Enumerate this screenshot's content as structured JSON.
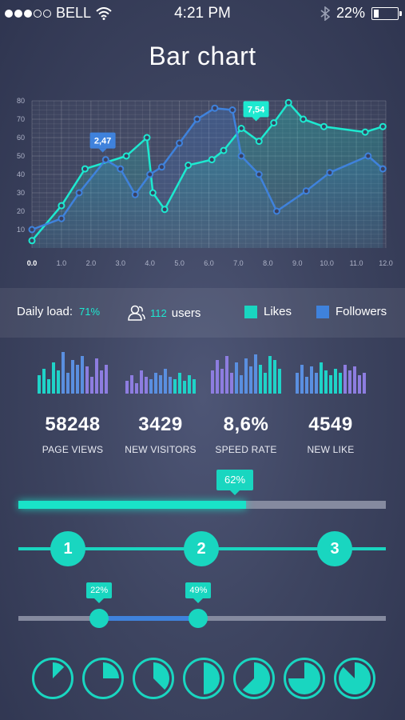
{
  "status_bar": {
    "carrier": "BELL",
    "time": "4:21 PM",
    "battery": "22%",
    "battery_level": 0.22,
    "signal_bars": [
      true,
      true,
      true,
      false,
      false
    ],
    "icons": [
      "wifi-icon",
      "bluetooth-icon",
      "battery-icon"
    ]
  },
  "page": {
    "title": "Bar chart"
  },
  "colors": {
    "accent": "#1de9d0",
    "likes": "#19d6c0",
    "followers": "#3f82dc",
    "track": "#858a9f"
  },
  "chart_data": {
    "type": "line",
    "title": "",
    "xlabel": "",
    "ylabel": "",
    "x_ticks": [
      "0.0",
      "1.0",
      "2.0",
      "3.0",
      "4.0",
      "5.0",
      "6.0",
      "7.0",
      "8.0",
      "9.0",
      "10.0",
      "11.0",
      "12.0"
    ],
    "y_ticks": [
      "10",
      "20",
      "30",
      "40",
      "50",
      "60",
      "70",
      "80"
    ],
    "xlim": [
      0,
      12
    ],
    "ylim": [
      0,
      80
    ],
    "grid": true,
    "series": [
      {
        "name": "Likes",
        "color": "#1de9d0",
        "x": [
          0,
          1,
          1.8,
          3.2,
          3.9,
          4.1,
          4.5,
          5.3,
          6.1,
          6.5,
          7.1,
          7.7,
          8.2,
          8.7,
          9.2,
          9.9,
          11.3,
          11.9
        ],
        "y": [
          4,
          23,
          43,
          50,
          60,
          30,
          21,
          45,
          48,
          53,
          65,
          58,
          68,
          79,
          70,
          66,
          63,
          66
        ]
      },
      {
        "name": "Followers",
        "color": "#3f82dc",
        "x": [
          0,
          1,
          1.6,
          2.5,
          3,
          3.5,
          4,
          4.4,
          5,
          5.6,
          6.2,
          6.8,
          7.1,
          7.7,
          8.3,
          9.3,
          10.1,
          11.4,
          11.9
        ],
        "y": [
          10,
          16,
          30,
          48,
          43,
          29,
          40,
          44,
          57,
          70,
          76,
          75,
          50,
          40,
          20,
          31,
          41,
          50,
          43
        ]
      }
    ],
    "annotations": [
      {
        "text": "2,47",
        "x": 2.4,
        "y": 48,
        "series": "Followers"
      },
      {
        "text": "7,54",
        "x": 7.6,
        "y": 65,
        "series": "Likes"
      }
    ]
  },
  "legend_bar": {
    "daily_load_label": "Daily load:",
    "daily_load_value": "71%",
    "users_count": "112",
    "users_label": "users",
    "likes_label": "Likes",
    "followers_label": "Followers"
  },
  "stats": [
    {
      "value": "58248",
      "label": "PAGE VIEWS",
      "bars": [
        0.45,
        0.6,
        0.35,
        0.75,
        0.55,
        1.0,
        0.5,
        0.8,
        0.7,
        0.9,
        0.65,
        0.4,
        0.85,
        0.55,
        0.7
      ],
      "colors": [
        "#1fd3c8",
        "#5a8fe0",
        "#8d7de0"
      ]
    },
    {
      "value": "3429",
      "label": "NEW VISITORS",
      "bars": [
        0.3,
        0.45,
        0.25,
        0.55,
        0.4,
        0.35,
        0.5,
        0.45,
        0.6,
        0.4,
        0.35,
        0.5,
        0.3,
        0.45,
        0.35
      ],
      "colors": [
        "#8d7de0",
        "#5a8fe0",
        "#1fd3c8"
      ]
    },
    {
      "value": "8,6%",
      "label": "SPEED RATE",
      "bars": [
        0.55,
        0.8,
        0.6,
        0.9,
        0.5,
        0.75,
        0.45,
        0.85,
        0.65,
        0.95,
        0.7,
        0.5,
        0.9,
        0.8,
        0.6
      ],
      "colors": [
        "#8d7de0",
        "#5a8fe0",
        "#1fd3c8"
      ]
    },
    {
      "value": "4549",
      "label": "NEW LIKE",
      "bars": [
        0.5,
        0.7,
        0.4,
        0.65,
        0.5,
        0.75,
        0.55,
        0.45,
        0.6,
        0.5,
        0.7,
        0.55,
        0.65,
        0.45,
        0.5
      ],
      "colors": [
        "#5a8fe0",
        "#1fd3c8",
        "#8d7de0"
      ]
    }
  ],
  "progress": {
    "label": "62%",
    "value": 0.62
  },
  "steps": [
    "1",
    "2",
    "3"
  ],
  "range_slider": {
    "low_label": "22%",
    "high_label": "49%",
    "low": 0.22,
    "high": 0.49
  },
  "pies": [
    0.125,
    0.25,
    0.375,
    0.5,
    0.625,
    0.75,
    0.875
  ]
}
